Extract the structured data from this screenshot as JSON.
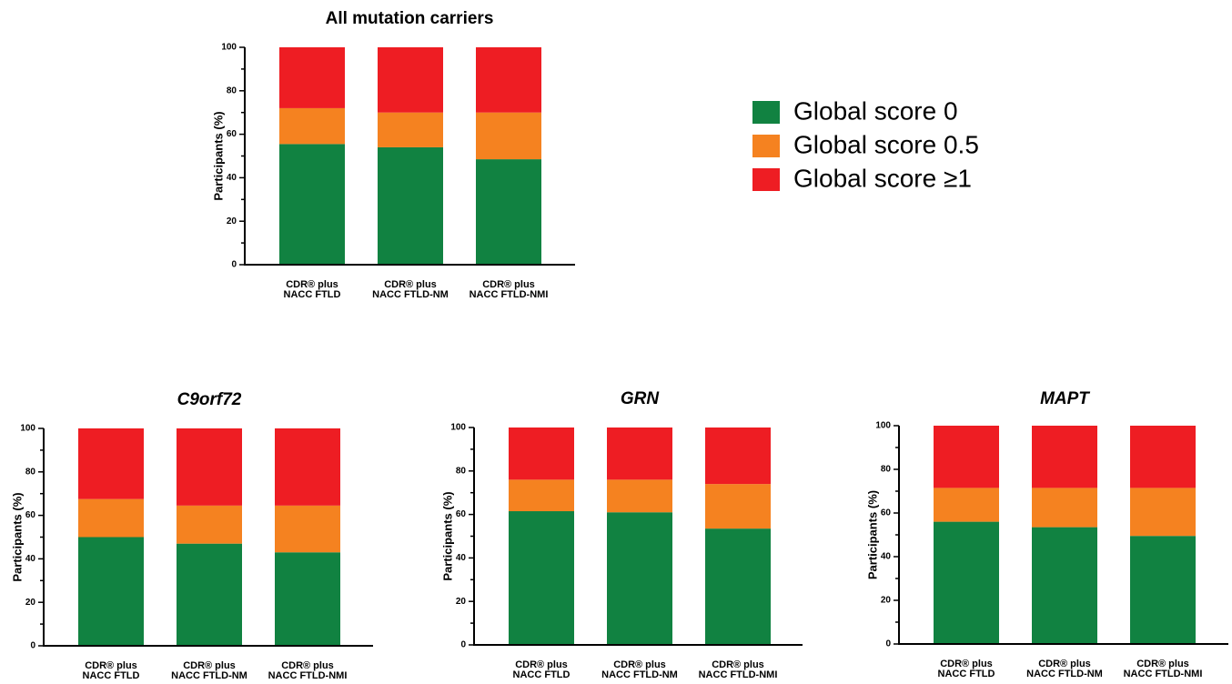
{
  "legend": {
    "items": [
      {
        "label": "Global score 0",
        "color": "#118241"
      },
      {
        "label": "Global score 0.5",
        "color": "#f58220"
      },
      {
        "label": "Global score ≥1",
        "color": "#ee1d23"
      }
    ]
  },
  "chart_data": [
    {
      "type": "bar",
      "stacked": true,
      "title": "All mutation carriers",
      "title_italic": false,
      "ylabel": "Participants (%)",
      "ylim": [
        0,
        100
      ],
      "yticks": [
        0,
        20,
        40,
        60,
        80,
        100
      ],
      "categories": [
        [
          "CDR® plus",
          "NACC FTLD"
        ],
        [
          "CDR® plus",
          "NACC FTLD-NM"
        ],
        [
          "CDR® plus",
          "NACC FTLD-NMI"
        ]
      ],
      "series": [
        {
          "name": "Global score 0",
          "values": [
            55.5,
            54,
            48.5
          ]
        },
        {
          "name": "Global score 0.5",
          "values": [
            16.5,
            16,
            21.5
          ]
        },
        {
          "name": "Global score ≥1",
          "values": [
            28,
            30,
            30
          ]
        }
      ]
    },
    {
      "type": "bar",
      "stacked": true,
      "title": "C9orf72",
      "title_italic": true,
      "ylabel": "Participants (%)",
      "ylim": [
        0,
        100
      ],
      "yticks": [
        0,
        20,
        40,
        60,
        80,
        100
      ],
      "categories": [
        [
          "CDR® plus",
          "NACC FTLD"
        ],
        [
          "CDR® plus",
          "NACC FTLD-NM"
        ],
        [
          "CDR® plus",
          "NACC FTLD-NMI"
        ]
      ],
      "series": [
        {
          "name": "Global score 0",
          "values": [
            50,
            47,
            43
          ]
        },
        {
          "name": "Global score 0.5",
          "values": [
            17.5,
            17.5,
            21.5
          ]
        },
        {
          "name": "Global score ≥1",
          "values": [
            32.5,
            35.5,
            35.5
          ]
        }
      ]
    },
    {
      "type": "bar",
      "stacked": true,
      "title": "GRN",
      "title_italic": true,
      "ylabel": "Participants (%)",
      "ylim": [
        0,
        100
      ],
      "yticks": [
        0,
        20,
        40,
        60,
        80,
        100
      ],
      "categories": [
        [
          "CDR® plus",
          "NACC FTLD"
        ],
        [
          "CDR® plus",
          "NACC FTLD-NM"
        ],
        [
          "CDR® plus",
          "NACC FTLD-NMI"
        ]
      ],
      "series": [
        {
          "name": "Global score 0",
          "values": [
            61.5,
            61,
            53.5
          ]
        },
        {
          "name": "Global score 0.5",
          "values": [
            14.5,
            15,
            20.5
          ]
        },
        {
          "name": "Global score ≥1",
          "values": [
            24,
            24,
            26
          ]
        }
      ]
    },
    {
      "type": "bar",
      "stacked": true,
      "title": "MAPT",
      "title_italic": true,
      "ylabel": "Participants (%)",
      "ylim": [
        0,
        100
      ],
      "yticks": [
        0,
        20,
        40,
        60,
        80,
        100
      ],
      "categories": [
        [
          "CDR® plus",
          "NACC FTLD"
        ],
        [
          "CDR® plus",
          "NACC FTLD-NM"
        ],
        [
          "CDR® plus",
          "NACC FTLD-NMI"
        ]
      ],
      "series": [
        {
          "name": "Global score 0",
          "values": [
            56,
            53.5,
            49.5
          ]
        },
        {
          "name": "Global score 0.5",
          "values": [
            15.5,
            18,
            22
          ]
        },
        {
          "name": "Global score ≥1",
          "values": [
            28.5,
            28.5,
            28.5
          ]
        }
      ]
    }
  ]
}
